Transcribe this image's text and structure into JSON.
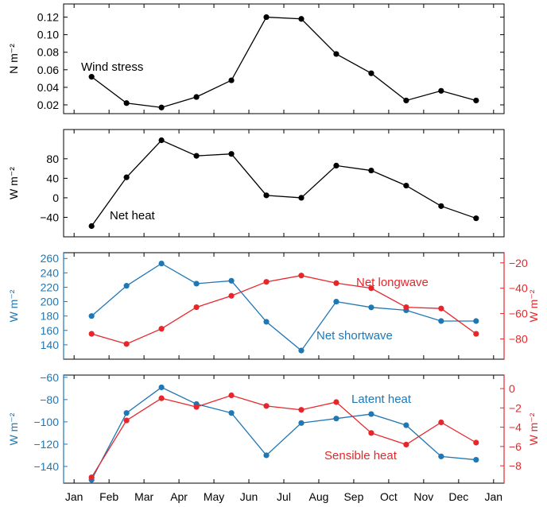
{
  "colors": {
    "black": "#000000",
    "blue": "#1f77b4",
    "red": "#e8262a"
  },
  "months": [
    "Jan",
    "Feb",
    "Mar",
    "Apr",
    "May",
    "Jun",
    "Jul",
    "Aug",
    "Sep",
    "Oct",
    "Nov",
    "Dec",
    "Jan"
  ],
  "chart_data": [
    {
      "type": "line",
      "ylabel": "N m⁻²",
      "ylim": [
        0.01,
        0.135
      ],
      "yticks": [
        0.02,
        0.04,
        0.06,
        0.08,
        0.1,
        0.12
      ],
      "ytick_labels": [
        "0.02",
        "0.04",
        "0.06",
        "0.08",
        "0.10",
        "0.12"
      ],
      "grid": false,
      "series": [
        {
          "name": "Wind stress",
          "color": "#000000",
          "x": [
            0.5,
            1.5,
            2.5,
            3.5,
            4.5,
            5.5,
            6.5,
            7.5,
            8.5,
            9.5,
            10.5,
            11.5
          ],
          "values": [
            0.052,
            0.022,
            0.017,
            0.029,
            0.048,
            0.12,
            0.118,
            0.078,
            0.056,
            0.025,
            0.036,
            0.025
          ]
        }
      ]
    },
    {
      "type": "line",
      "ylabel": "W m⁻²",
      "ylim": [
        -80,
        140
      ],
      "yticks": [
        -40,
        0,
        40,
        80
      ],
      "ytick_labels": [
        "−40",
        "0",
        "40",
        "80"
      ],
      "grid": false,
      "series": [
        {
          "name": "Net heat",
          "color": "#000000",
          "x": [
            0.5,
            1.5,
            2.5,
            3.5,
            4.5,
            5.5,
            6.5,
            7.5,
            8.5,
            9.5,
            10.5,
            11.5
          ],
          "values": [
            -58,
            42,
            118,
            86,
            90,
            5,
            0,
            66,
            56,
            25,
            -17,
            -42
          ]
        }
      ]
    },
    {
      "type": "line",
      "ylabel": "W m⁻²",
      "ylim": [
        120,
        268
      ],
      "yticks": [
        140,
        160,
        180,
        200,
        220,
        240,
        260
      ],
      "ytick_labels": [
        "140",
        "160",
        "180",
        "200",
        "220",
        "240",
        "260"
      ],
      "ylabel_right": "W m⁻²",
      "ylim_right": [
        -96,
        -12
      ],
      "yticks_right": [
        -80,
        -60,
        -40,
        -20
      ],
      "ytick_labels_right": [
        "−80",
        "−60",
        "−40",
        "−20"
      ],
      "grid": false,
      "series": [
        {
          "name": "Net shortwave",
          "color": "#1f77b4",
          "axis": "left",
          "x": [
            0.5,
            1.5,
            2.5,
            3.5,
            4.5,
            5.5,
            6.5,
            7.5,
            8.5,
            9.5,
            10.5,
            11.5
          ],
          "values": [
            180,
            222,
            253,
            225,
            229,
            172,
            132,
            200,
            192,
            188,
            173,
            173
          ]
        },
        {
          "name": "Net longwave",
          "color": "#e8262a",
          "axis": "right",
          "x": [
            0.5,
            1.5,
            2.5,
            3.5,
            4.5,
            5.5,
            6.5,
            7.5,
            8.5,
            9.5,
            10.5,
            11.5
          ],
          "values": [
            -76,
            -84,
            -72,
            -55,
            -46,
            -35,
            -30,
            -36,
            -40,
            -55,
            -56,
            -76
          ]
        }
      ]
    },
    {
      "type": "line",
      "ylabel": "W m⁻²",
      "ylim": [
        -155,
        -58
      ],
      "yticks": [
        -140,
        -120,
        -100,
        -80,
        -60
      ],
      "ytick_labels": [
        "−140",
        "−120",
        "−100",
        "−80",
        "−60"
      ],
      "ylabel_right": "W m⁻²",
      "ylim_right": [
        -9.8,
        1.4
      ],
      "yticks_right": [
        -8,
        -6,
        -4,
        -2,
        0
      ],
      "ytick_labels_right": [
        "−8",
        "−6",
        "−4",
        "−2",
        "0"
      ],
      "grid": false,
      "series": [
        {
          "name": "Latent heat",
          "color": "#1f77b4",
          "axis": "left",
          "x": [
            0.5,
            1.5,
            2.5,
            3.5,
            4.5,
            5.5,
            6.5,
            7.5,
            8.5,
            9.5,
            10.5,
            11.5
          ],
          "values": [
            -152,
            -92,
            -69,
            -84,
            -92,
            -130,
            -101,
            -97,
            -93,
            -103,
            -131,
            -134
          ]
        },
        {
          "name": "Sensible heat",
          "color": "#e8262a",
          "axis": "right",
          "x": [
            0.5,
            1.5,
            2.5,
            3.5,
            4.5,
            5.5,
            6.5,
            7.5,
            8.5,
            9.5,
            10.5,
            11.5
          ],
          "values": [
            -9.2,
            -3.3,
            -1.0,
            -1.9,
            -0.7,
            -1.8,
            -2.2,
            -1.4,
            -4.6,
            -5.8,
            -3.5,
            -5.6
          ]
        }
      ]
    }
  ]
}
